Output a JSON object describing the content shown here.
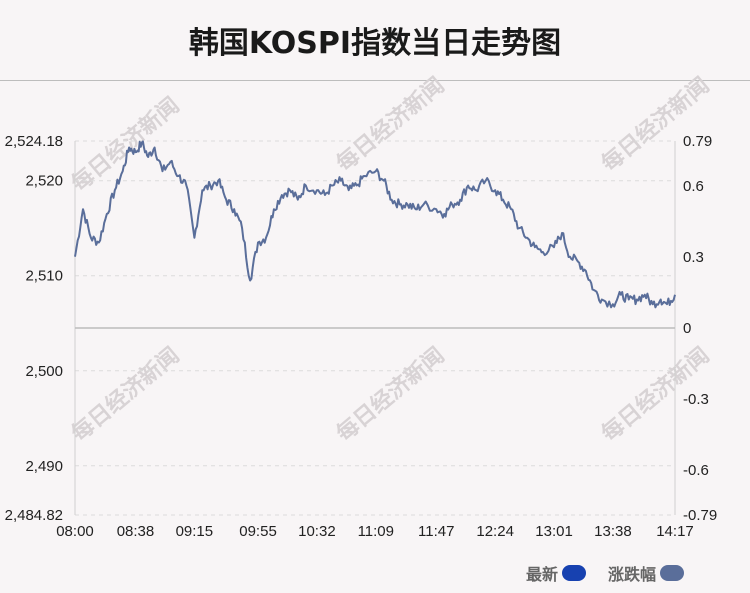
{
  "title": "韩国KOSPI指数当日走势图",
  "watermark": "每日经济新闻",
  "legend": {
    "latest_label": "最新",
    "latest_color": "#1741b0",
    "change_label": "涨跌幅",
    "change_color": "#5a6e9a"
  },
  "chart_data": {
    "type": "line",
    "title": "韩国KOSPI指数当日走势图",
    "xlabel": "",
    "ylabel": "",
    "grid": true,
    "legend_position": "bottom-right",
    "x_ticks": [
      "08:00",
      "08:38",
      "09:15",
      "09:55",
      "10:32",
      "11:09",
      "11:47",
      "12:24",
      "13:01",
      "13:38",
      "14:17"
    ],
    "y_left_ticks": [
      "2,524.18",
      "2,520",
      "2,510",
      "2,500",
      "2,490",
      "2,484.82"
    ],
    "y_left_values": [
      2524.18,
      2520,
      2510,
      2500,
      2490,
      2484.82
    ],
    "y_right_ticks": [
      "0.79",
      "0.6",
      "0.3",
      "0",
      "-0.3",
      "-0.6",
      "-0.79"
    ],
    "y_right_values": [
      0.79,
      0.6,
      0.3,
      0,
      -0.3,
      -0.6,
      -0.79
    ],
    "ylim": [
      2484.82,
      2524.18
    ],
    "ylim_right": [
      -0.79,
      0.79
    ],
    "series": [
      {
        "name": "最新",
        "color": "#5a6e9a",
        "x": [
          "08:00",
          "08:05",
          "08:10",
          "08:15",
          "08:20",
          "08:25",
          "08:30",
          "08:34",
          "08:38",
          "08:42",
          "08:46",
          "08:50",
          "08:55",
          "09:00",
          "09:05",
          "09:10",
          "09:15",
          "09:20",
          "09:25",
          "09:30",
          "09:35",
          "09:40",
          "09:45",
          "09:50",
          "09:55",
          "10:00",
          "10:05",
          "10:10",
          "10:15",
          "10:20",
          "10:25",
          "10:32",
          "10:37",
          "10:42",
          "10:47",
          "10:52",
          "10:57",
          "11:02",
          "11:09",
          "11:14",
          "11:19",
          "11:24",
          "11:29",
          "11:34",
          "11:39",
          "11:47",
          "11:52",
          "11:57",
          "12:02",
          "12:07",
          "12:12",
          "12:18",
          "12:24",
          "12:29",
          "12:34",
          "12:39",
          "12:44",
          "12:49",
          "12:54",
          "13:01",
          "13:06",
          "13:11",
          "13:16",
          "13:21",
          "13:26",
          "13:31",
          "13:38",
          "13:43",
          "13:48",
          "13:53",
          "13:58",
          "14:03",
          "14:08",
          "14:12",
          "14:17"
        ],
        "values": [
          2512.0,
          2517.0,
          2514.0,
          2513.5,
          2516.5,
          2519.0,
          2521.0,
          2523.5,
          2523.0,
          2524.0,
          2522.5,
          2523.5,
          2521.0,
          2522.0,
          2520.5,
          2519.5,
          2514.0,
          2519.0,
          2519.5,
          2520.0,
          2518.0,
          2517.0,
          2515.0,
          2509.5,
          2513.5,
          2514.0,
          2517.0,
          2518.5,
          2519.0,
          2518.0,
          2519.5,
          2519.0,
          2518.5,
          2519.5,
          2520.0,
          2519.0,
          2519.5,
          2520.5,
          2521.0,
          2520.0,
          2518.0,
          2517.5,
          2517.5,
          2517.0,
          2517.5,
          2517.0,
          2516.5,
          2517.5,
          2518.0,
          2519.5,
          2519.0,
          2520.0,
          2519.0,
          2518.0,
          2517.0,
          2515.0,
          2514.0,
          2513.0,
          2512.5,
          2513.0,
          2514.5,
          2512.0,
          2511.5,
          2510.5,
          2508.5,
          2507.5,
          2507.0,
          2508.0,
          2507.5,
          2507.5,
          2508.0,
          2507.0,
          2507.5,
          2507.0,
          2508.0
        ]
      }
    ]
  }
}
